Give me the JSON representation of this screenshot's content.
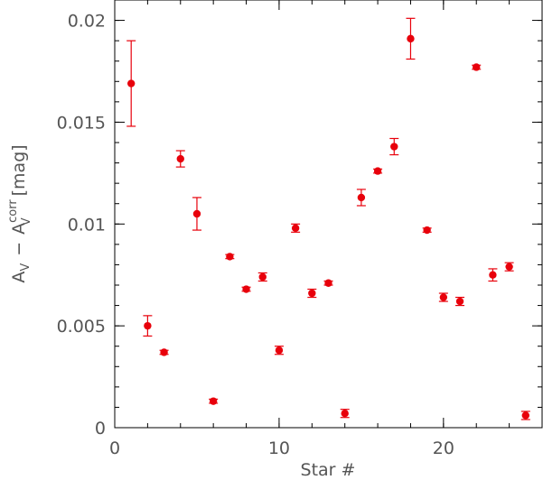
{
  "chart_data": {
    "type": "scatter",
    "title": "",
    "xlabel": "Star #",
    "ylabel": {
      "base": "A",
      "sub1": "V",
      "minus": "−",
      "base2": "A",
      "sup2": "corr",
      "sub2": "V",
      "unit": "[mag]"
    },
    "xlim": [
      0,
      26
    ],
    "ylim": [
      0,
      0.021
    ],
    "x_ticks": [
      {
        "value": 0,
        "label": "0"
      },
      {
        "value": 10,
        "label": "10"
      },
      {
        "value": 20,
        "label": "20"
      }
    ],
    "y_ticks": [
      {
        "value": 0,
        "label": "0"
      },
      {
        "value": 0.005,
        "label": "0.005"
      },
      {
        "value": 0.01,
        "label": "0.01"
      },
      {
        "value": 0.015,
        "label": "0.015"
      },
      {
        "value": 0.02,
        "label": "0.02"
      }
    ],
    "x_minor_step": 2,
    "y_minor_step": 0.001,
    "grid": false,
    "marker_color": "#e8000b",
    "series": [
      {
        "points": [
          {
            "x": 1,
            "y": 0.0169,
            "err": 0.0021
          },
          {
            "x": 2,
            "y": 0.005,
            "err": 0.0005
          },
          {
            "x": 3,
            "y": 0.0037,
            "err": 0.0001
          },
          {
            "x": 4,
            "y": 0.0132,
            "err": 0.0004
          },
          {
            "x": 5,
            "y": 0.0105,
            "err": 0.0008
          },
          {
            "x": 6,
            "y": 0.0013,
            "err": 0.0001
          },
          {
            "x": 7,
            "y": 0.0084,
            "err": 0.0001
          },
          {
            "x": 8,
            "y": 0.0068,
            "err": 0.0001
          },
          {
            "x": 9,
            "y": 0.0074,
            "err": 0.0002
          },
          {
            "x": 10,
            "y": 0.0038,
            "err": 0.0002
          },
          {
            "x": 11,
            "y": 0.0098,
            "err": 0.0002
          },
          {
            "x": 12,
            "y": 0.0066,
            "err": 0.0002
          },
          {
            "x": 13,
            "y": 0.0071,
            "err": 0.0001
          },
          {
            "x": 14,
            "y": 0.0007,
            "err": 0.0002
          },
          {
            "x": 15,
            "y": 0.0113,
            "err": 0.0004
          },
          {
            "x": 16,
            "y": 0.0126,
            "err": 0.0001
          },
          {
            "x": 17,
            "y": 0.0138,
            "err": 0.0004
          },
          {
            "x": 18,
            "y": 0.0191,
            "err": 0.001
          },
          {
            "x": 19,
            "y": 0.0097,
            "err": 0.0001
          },
          {
            "x": 20,
            "y": 0.0064,
            "err": 0.0002
          },
          {
            "x": 21,
            "y": 0.0062,
            "err": 0.0002
          },
          {
            "x": 22,
            "y": 0.0177,
            "err": 0.0001
          },
          {
            "x": 23,
            "y": 0.0075,
            "err": 0.0003
          },
          {
            "x": 24,
            "y": 0.0079,
            "err": 0.0002
          },
          {
            "x": 25,
            "y": 0.0006,
            "err": 0.0002
          }
        ]
      }
    ]
  }
}
